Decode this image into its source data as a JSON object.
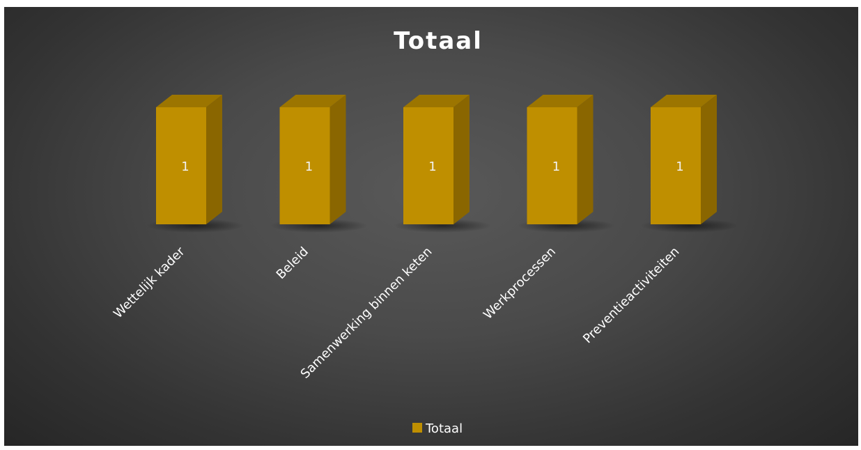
{
  "chart_data": {
    "type": "bar",
    "style": "3d-column",
    "title": "Totaal",
    "categories": [
      "Wettelijk kader",
      "Beleid",
      "Samenwerking binnen keten",
      "Werkprocessen",
      "Preventieactiviteiten"
    ],
    "series": [
      {
        "name": "Totaal",
        "values": [
          1,
          1,
          1,
          1,
          1
        ],
        "color": "#bf8f00"
      }
    ],
    "ylim": [
      0,
      1
    ],
    "grid": false,
    "legend": "bottom",
    "data_labels": true
  },
  "colors": {
    "bar_front": "#bf8f00",
    "bar_side": "#8a6600",
    "bar_top": "#9c7500",
    "background": "#404040",
    "text": "#ffffff"
  }
}
